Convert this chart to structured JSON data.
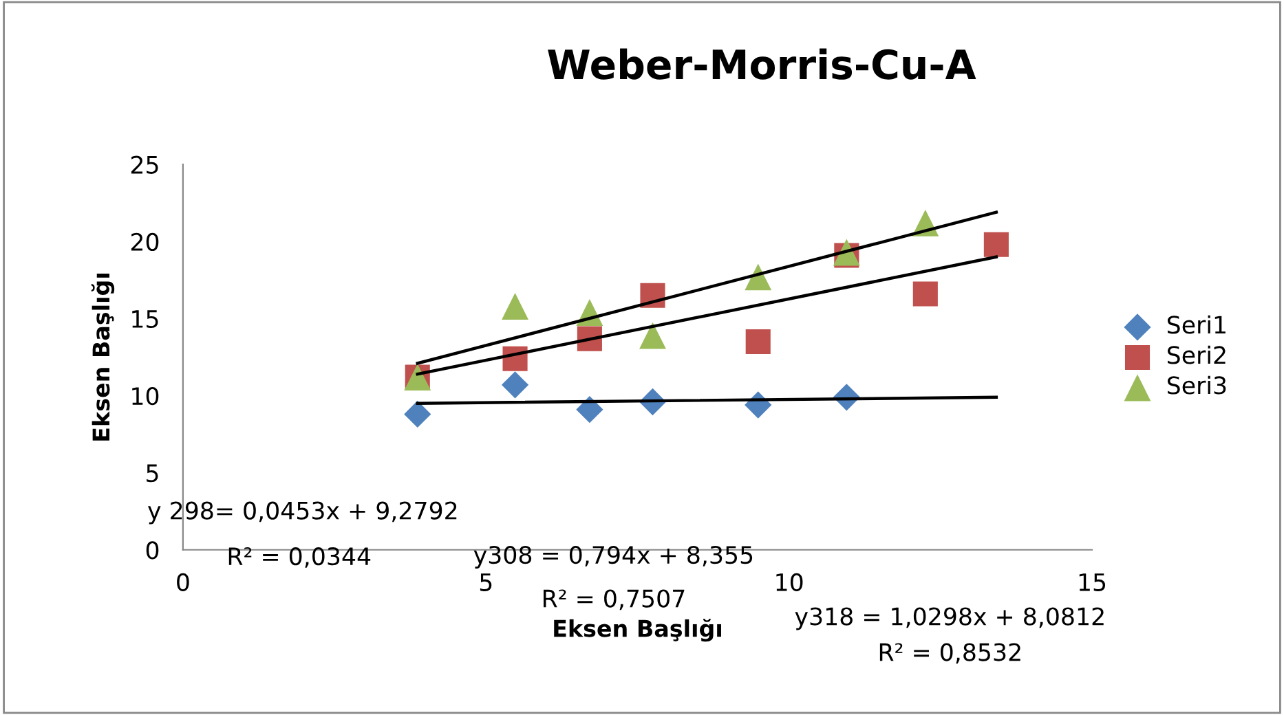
{
  "chart_data": {
    "type": "scatter",
    "title": "Weber-Morris-Cu-A",
    "xlabel": "Eksen Başlığı",
    "ylabel": "Eksen Başlığı",
    "xlim": [
      0,
      15
    ],
    "xticks": [
      0,
      5,
      10,
      15
    ],
    "ylim": [
      0,
      25
    ],
    "yticks": [
      0,
      5,
      10,
      15,
      20,
      25
    ],
    "grid": false,
    "legend": "right",
    "series": [
      {
        "name": "Seri1",
        "color": "#4f81bd",
        "marker": "diamond",
        "x": [
          3.87,
          5.48,
          6.71,
          7.75,
          9.49,
          10.95
        ],
        "values": [
          8.8,
          10.7,
          9.1,
          9.6,
          9.4,
          9.9
        ]
      },
      {
        "name": "Seri2",
        "color": "#c0504d",
        "marker": "square",
        "x": [
          3.87,
          5.48,
          6.71,
          7.75,
          9.49,
          10.95,
          12.25,
          13.42
        ],
        "values": [
          11.2,
          12.4,
          13.7,
          16.5,
          13.5,
          19.1,
          16.6,
          19.8
        ]
      },
      {
        "name": "Seri3",
        "color": "#9bbb59",
        "marker": "triangle",
        "x": [
          3.87,
          5.48,
          6.71,
          7.75,
          9.49,
          10.95,
          12.25
        ],
        "values": [
          11.2,
          15.8,
          15.4,
          13.9,
          17.7,
          19.3,
          21.2
        ]
      },
      {
        "type": "line",
        "color": "#000000",
        "x": [
          3.87,
          13.42
        ],
        "values": [
          9.5,
          9.9
        ]
      },
      {
        "type": "line",
        "color": "#000000",
        "x": [
          3.87,
          13.42
        ],
        "values": [
          11.4,
          19.0
        ]
      },
      {
        "type": "line",
        "color": "#000000",
        "x": [
          3.87,
          13.42
        ],
        "values": [
          12.1,
          21.9
        ]
      }
    ],
    "annotations": [
      "y 298= 0,0453x + 9,2792",
      "R² = 0,0344",
      "y308 = 0,794x + 8,355",
      "R² = 0,7507",
      "y318 = 1,0298x + 8,0812",
      "R² = 0,8532"
    ]
  }
}
